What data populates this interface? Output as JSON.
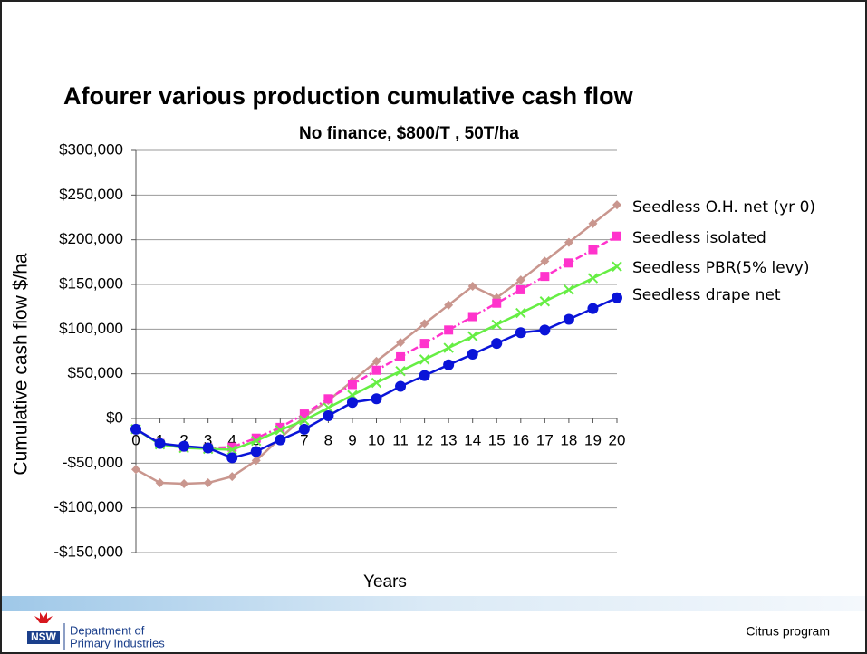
{
  "chart_data": {
    "type": "line",
    "title": "Afourer various production cumulative cash flow",
    "subtitle": "No finance, $800/T , 50T/ha",
    "y_label": "Cumulative  cash flow $/ha",
    "x_label": "Years",
    "x": [
      0,
      1,
      2,
      3,
      4,
      5,
      6,
      7,
      8,
      9,
      10,
      11,
      12,
      13,
      14,
      15,
      16,
      17,
      18,
      19,
      20
    ],
    "xlim": [
      0,
      20
    ],
    "xticks": [
      0,
      1,
      2,
      3,
      4,
      5,
      6,
      7,
      8,
      9,
      10,
      11,
      12,
      13,
      14,
      15,
      16,
      17,
      18,
      19,
      20
    ],
    "ylim": [
      -150000,
      300000
    ],
    "yticks": [
      {
        "value": -150000,
        "label": "-$150,000"
      },
      {
        "value": -100000,
        "label": "-$100,000"
      },
      {
        "value": -50000,
        "label": "-$50,000"
      },
      {
        "value": 0,
        "label": "$0"
      },
      {
        "value": 50000,
        "label": "$50,000"
      },
      {
        "value": 100000,
        "label": "$100,000"
      },
      {
        "value": 150000,
        "label": "$150,000"
      },
      {
        "value": 200000,
        "label": "$200,000"
      },
      {
        "value": 250000,
        "label": "$250,000"
      },
      {
        "value": 300000,
        "label": "$300,000"
      }
    ],
    "grid": true,
    "legend": "right",
    "series": [
      {
        "name": "Seedless O.H. net (yr 0)",
        "color": "#c9968e",
        "marker": "diamond",
        "dash": "solid",
        "values": [
          -57000,
          -72000,
          -73000,
          -72000,
          -65000,
          -47000,
          -22000,
          2000,
          20000,
          42000,
          64000,
          85000,
          106000,
          127000,
          148000,
          135000,
          155000,
          176000,
          197000,
          218000,
          239000
        ]
      },
      {
        "name": "Seedless isolated",
        "color": "#ff33cc",
        "marker": "square",
        "dash": "dashdot",
        "values": [
          -12000,
          -28000,
          -32000,
          -33000,
          -32000,
          -22000,
          -10000,
          5000,
          22000,
          38000,
          54000,
          69000,
          84000,
          99000,
          114000,
          129000,
          144000,
          159000,
          174000,
          189000,
          204000
        ]
      },
      {
        "name": "Seedless PBR(5% levy)",
        "color": "#66ee44",
        "marker": "x",
        "dash": "solid",
        "values": [
          -12000,
          -29000,
          -33000,
          -34000,
          -35000,
          -25000,
          -13000,
          -2000,
          12000,
          26000,
          40000,
          53000,
          66000,
          79000,
          92000,
          105000,
          118000,
          131000,
          144000,
          157000,
          170000
        ]
      },
      {
        "name": "Seedless drape net",
        "color": "#0a14d8",
        "marker": "circle",
        "dash": "solid",
        "values": [
          -12000,
          -28000,
          -31000,
          -33000,
          -44000,
          -37000,
          -24000,
          -12000,
          3000,
          18000,
          22000,
          36000,
          48000,
          60000,
          72000,
          84000,
          96000,
          99000,
          111000,
          123000,
          135000
        ]
      }
    ]
  },
  "footer": {
    "logo": "NSW",
    "org_line1": "Department of",
    "org_line2": "Primary Industries",
    "program": "Citrus program"
  }
}
